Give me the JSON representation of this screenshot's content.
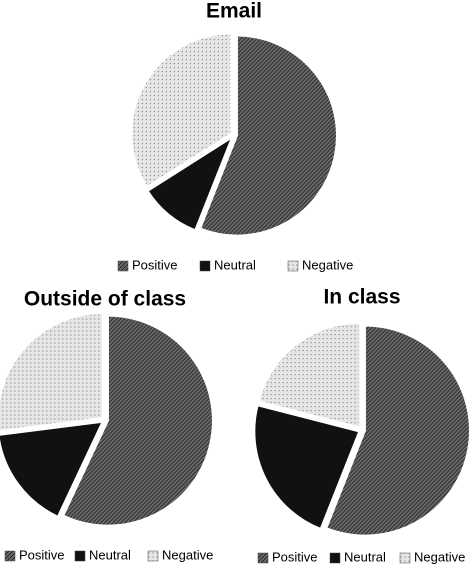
{
  "chart_data": [
    {
      "type": "pie",
      "title": "Email",
      "categories": [
        "Positive",
        "Neutral",
        "Negative"
      ],
      "values": [
        56,
        10,
        34
      ],
      "colors": [
        "#6a6a6a",
        "#111111",
        "#e6e6e6"
      ]
    },
    {
      "type": "pie",
      "title": "Outside of class",
      "categories": [
        "Positive",
        "Neutral",
        "Negative"
      ],
      "values": [
        57,
        16,
        27
      ],
      "colors": [
        "#6a6a6a",
        "#111111",
        "#e6e6e6"
      ]
    },
    {
      "type": "pie",
      "title": "In class",
      "categories": [
        "Positive",
        "Neutral",
        "Negative"
      ],
      "values": [
        56,
        23,
        21
      ],
      "colors": [
        "#6a6a6a",
        "#111111",
        "#e6e6e6"
      ]
    }
  ]
}
